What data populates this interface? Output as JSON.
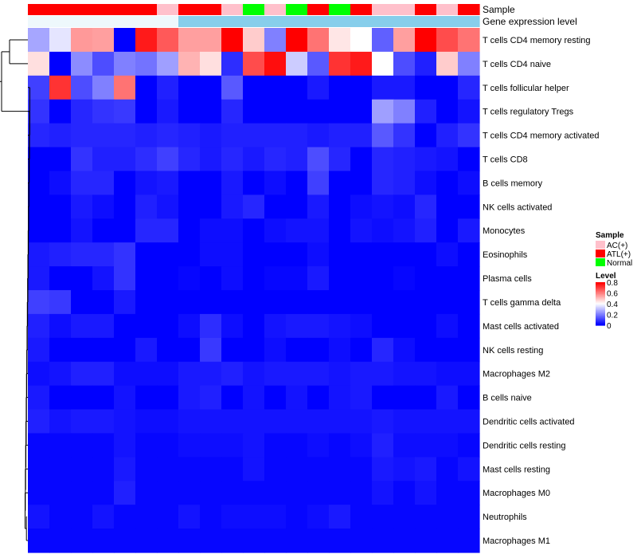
{
  "chart_data": {
    "type": "heatmap",
    "annotation_tracks": [
      {
        "name": "Sample",
        "values": [
          "ATL(+)",
          "ATL(+)",
          "ATL(+)",
          "ATL(+)",
          "ATL(+)",
          "ATL(+)",
          "AC(+)",
          "ATL(+)",
          "ATL(+)",
          "AC(+)",
          "Normal",
          "AC(+)",
          "Normal",
          "ATL(+)",
          "Normal",
          "ATL(+)",
          "AC(+)",
          "AC(+)",
          "ATL(+)",
          "AC(+)",
          "ATL(+)"
        ]
      },
      {
        "name": "Gene expression level",
        "values": [
          "low",
          "low",
          "low",
          "low",
          "low",
          "low",
          "low",
          "high",
          "high",
          "high",
          "high",
          "high",
          "high",
          "high",
          "high",
          "high",
          "high",
          "high",
          "high",
          "high",
          "high"
        ]
      }
    ],
    "rows": [
      "T cells CD4 memory resting",
      "T cells CD4 naive",
      "T cells follicular helper",
      "T cells regulatory  Tregs",
      "T cells CD4 memory activated",
      "T cells CD8",
      "B cells memory",
      "NK cells activated",
      "Monocytes",
      "Eosinophils",
      "Plasma cells",
      "T cells gamma delta",
      "Mast cells activated",
      "NK cells resting",
      "Macrophages M2",
      "B cells naive",
      "Dendritic cells activated",
      "Dendritic cells resting",
      "Mast cells resting",
      "Macrophages M0",
      "Neutrophils",
      "Macrophages M1"
    ],
    "values": [
      [
        0.26,
        0.36,
        0.56,
        0.55,
        0.0,
        0.76,
        0.66,
        0.55,
        0.55,
        0.8,
        0.48,
        0.2,
        0.8,
        0.62,
        0.44,
        0.4,
        0.15,
        0.55,
        0.8,
        0.68,
        0.62
      ],
      [
        0.45,
        0.0,
        0.22,
        0.12,
        0.2,
        0.18,
        0.25,
        0.52,
        0.45,
        0.07,
        0.68,
        0.78,
        0.32,
        0.14,
        0.72,
        0.76,
        0.4,
        0.12,
        0.05,
        0.48,
        0.2
      ],
      [
        0.1,
        0.72,
        0.12,
        0.2,
        0.62,
        0.0,
        0.05,
        0.0,
        0.0,
        0.14,
        0.0,
        0.0,
        0.0,
        0.04,
        0.0,
        0.0,
        0.04,
        0.04,
        0.0,
        0.0,
        0.06
      ],
      [
        0.08,
        0.0,
        0.06,
        0.08,
        0.09,
        0.0,
        0.04,
        0.0,
        0.0,
        0.06,
        0.0,
        0.0,
        0.0,
        0.0,
        0.0,
        0.0,
        0.25,
        0.2,
        0.05,
        0.0,
        0.03
      ],
      [
        0.06,
        0.05,
        0.06,
        0.06,
        0.06,
        0.05,
        0.06,
        0.05,
        0.04,
        0.05,
        0.05,
        0.05,
        0.05,
        0.04,
        0.05,
        0.05,
        0.14,
        0.08,
        0.0,
        0.05,
        0.08
      ],
      [
        0.0,
        0.0,
        0.08,
        0.05,
        0.05,
        0.07,
        0.1,
        0.06,
        0.04,
        0.06,
        0.04,
        0.06,
        0.05,
        0.12,
        0.06,
        0.0,
        0.06,
        0.05,
        0.04,
        0.03,
        0.0
      ],
      [
        0.0,
        0.02,
        0.06,
        0.06,
        0.0,
        0.03,
        0.04,
        0.0,
        0.0,
        0.04,
        0.0,
        0.02,
        0.0,
        0.1,
        0.0,
        0.0,
        0.06,
        0.05,
        0.02,
        0.0,
        0.02
      ],
      [
        0.0,
        0.0,
        0.04,
        0.02,
        0.0,
        0.05,
        0.03,
        0.0,
        0.0,
        0.04,
        0.06,
        0.0,
        0.0,
        0.04,
        0.0,
        0.02,
        0.03,
        0.02,
        0.06,
        0.0,
        0.0
      ],
      [
        0.0,
        0.0,
        0.03,
        0.0,
        0.0,
        0.06,
        0.06,
        0.0,
        0.02,
        0.02,
        0.0,
        0.02,
        0.03,
        0.03,
        0.0,
        0.03,
        0.02,
        0.03,
        0.05,
        0.0,
        0.04
      ],
      [
        0.04,
        0.05,
        0.06,
        0.06,
        0.08,
        0.0,
        0.0,
        0.0,
        0.02,
        0.02,
        0.0,
        0.0,
        0.0,
        0.02,
        0.0,
        0.0,
        0.0,
        0.0,
        0.0,
        0.02,
        0.0
      ],
      [
        0.04,
        0.0,
        0.0,
        0.03,
        0.08,
        0.0,
        0.0,
        0.01,
        0.0,
        0.02,
        0.0,
        0.01,
        0.01,
        0.04,
        0.0,
        0.0,
        0.0,
        0.01,
        0.0,
        0.0,
        0.0
      ],
      [
        0.1,
        0.09,
        0.0,
        0.0,
        0.04,
        0.0,
        0.0,
        0.0,
        0.0,
        0.0,
        0.0,
        0.0,
        0.0,
        0.0,
        0.0,
        0.0,
        0.0,
        0.0,
        0.0,
        0.0,
        0.0
      ],
      [
        0.05,
        0.02,
        0.04,
        0.04,
        0.0,
        0.0,
        0.0,
        0.02,
        0.07,
        0.02,
        0.0,
        0.03,
        0.04,
        0.04,
        0.03,
        0.02,
        0.0,
        0.0,
        0.0,
        0.02,
        0.0
      ],
      [
        0.04,
        0.0,
        0.0,
        0.0,
        0.0,
        0.04,
        0.0,
        0.0,
        0.09,
        0.0,
        0.0,
        0.02,
        0.0,
        0.0,
        0.02,
        0.0,
        0.06,
        0.02,
        0.0,
        0.0,
        0.0
      ],
      [
        0.02,
        0.03,
        0.05,
        0.05,
        0.02,
        0.02,
        0.02,
        0.04,
        0.04,
        0.05,
        0.03,
        0.04,
        0.04,
        0.04,
        0.03,
        0.04,
        0.04,
        0.03,
        0.03,
        0.02,
        0.02
      ],
      [
        0.04,
        0.0,
        0.0,
        0.0,
        0.03,
        0.0,
        0.0,
        0.04,
        0.05,
        0.0,
        0.03,
        0.0,
        0.03,
        0.0,
        0.03,
        0.04,
        0.0,
        0.0,
        0.0,
        0.04,
        0.0
      ],
      [
        0.05,
        0.03,
        0.04,
        0.04,
        0.03,
        0.02,
        0.02,
        0.03,
        0.03,
        0.03,
        0.03,
        0.03,
        0.03,
        0.03,
        0.03,
        0.03,
        0.04,
        0.03,
        0.03,
        0.03,
        0.03
      ],
      [
        0.01,
        0.01,
        0.01,
        0.01,
        0.03,
        0.01,
        0.01,
        0.02,
        0.02,
        0.02,
        0.03,
        0.01,
        0.01,
        0.02,
        0.01,
        0.02,
        0.05,
        0.02,
        0.02,
        0.02,
        0.01
      ],
      [
        0.01,
        0.01,
        0.01,
        0.01,
        0.04,
        0.01,
        0.01,
        0.01,
        0.01,
        0.01,
        0.03,
        0.01,
        0.01,
        0.01,
        0.01,
        0.01,
        0.04,
        0.03,
        0.04,
        0.01,
        0.03
      ],
      [
        0.01,
        0.01,
        0.01,
        0.01,
        0.05,
        0.01,
        0.01,
        0.01,
        0.01,
        0.01,
        0.01,
        0.01,
        0.01,
        0.01,
        0.01,
        0.01,
        0.03,
        0.01,
        0.03,
        0.01,
        0.01
      ],
      [
        0.03,
        0.01,
        0.01,
        0.03,
        0.01,
        0.01,
        0.01,
        0.03,
        0.01,
        0.02,
        0.02,
        0.02,
        0.01,
        0.02,
        0.04,
        0.01,
        0.01,
        0.01,
        0.01,
        0.01,
        0.01
      ],
      [
        0.01,
        0.01,
        0.01,
        0.01,
        0.01,
        0.01,
        0.01,
        0.01,
        0.01,
        0.01,
        0.01,
        0.01,
        0.01,
        0.01,
        0.01,
        0.01,
        0.01,
        0.01,
        0.01,
        0.01,
        0.01
      ]
    ],
    "color_scale": {
      "min": 0,
      "mid": 0.4,
      "max": 0.8,
      "low_color": "#0000ff",
      "mid_color": "#ffffff",
      "high_color": "#ff0000"
    },
    "row_dendrogram": true,
    "legends": [
      {
        "title": "Sample",
        "entries": [
          {
            "label": "AC(+)",
            "color": "#ffc0cb"
          },
          {
            "label": "ATL(+)",
            "color": "#ff0000"
          },
          {
            "label": "Normal",
            "color": "#00ff00"
          }
        ]
      },
      {
        "title": "Level",
        "ticks": [
          "0.8",
          "0.6",
          "0.4",
          "0.2",
          "0"
        ]
      }
    ],
    "annotation_colors": {
      "Sample": {
        "AC(+)": "#ffc0cb",
        "ATL(+)": "#ff0000",
        "Normal": "#00ff00"
      },
      "Gene expression level": {
        "low": "#eef8fc",
        "high": "#87ceeb"
      }
    }
  }
}
